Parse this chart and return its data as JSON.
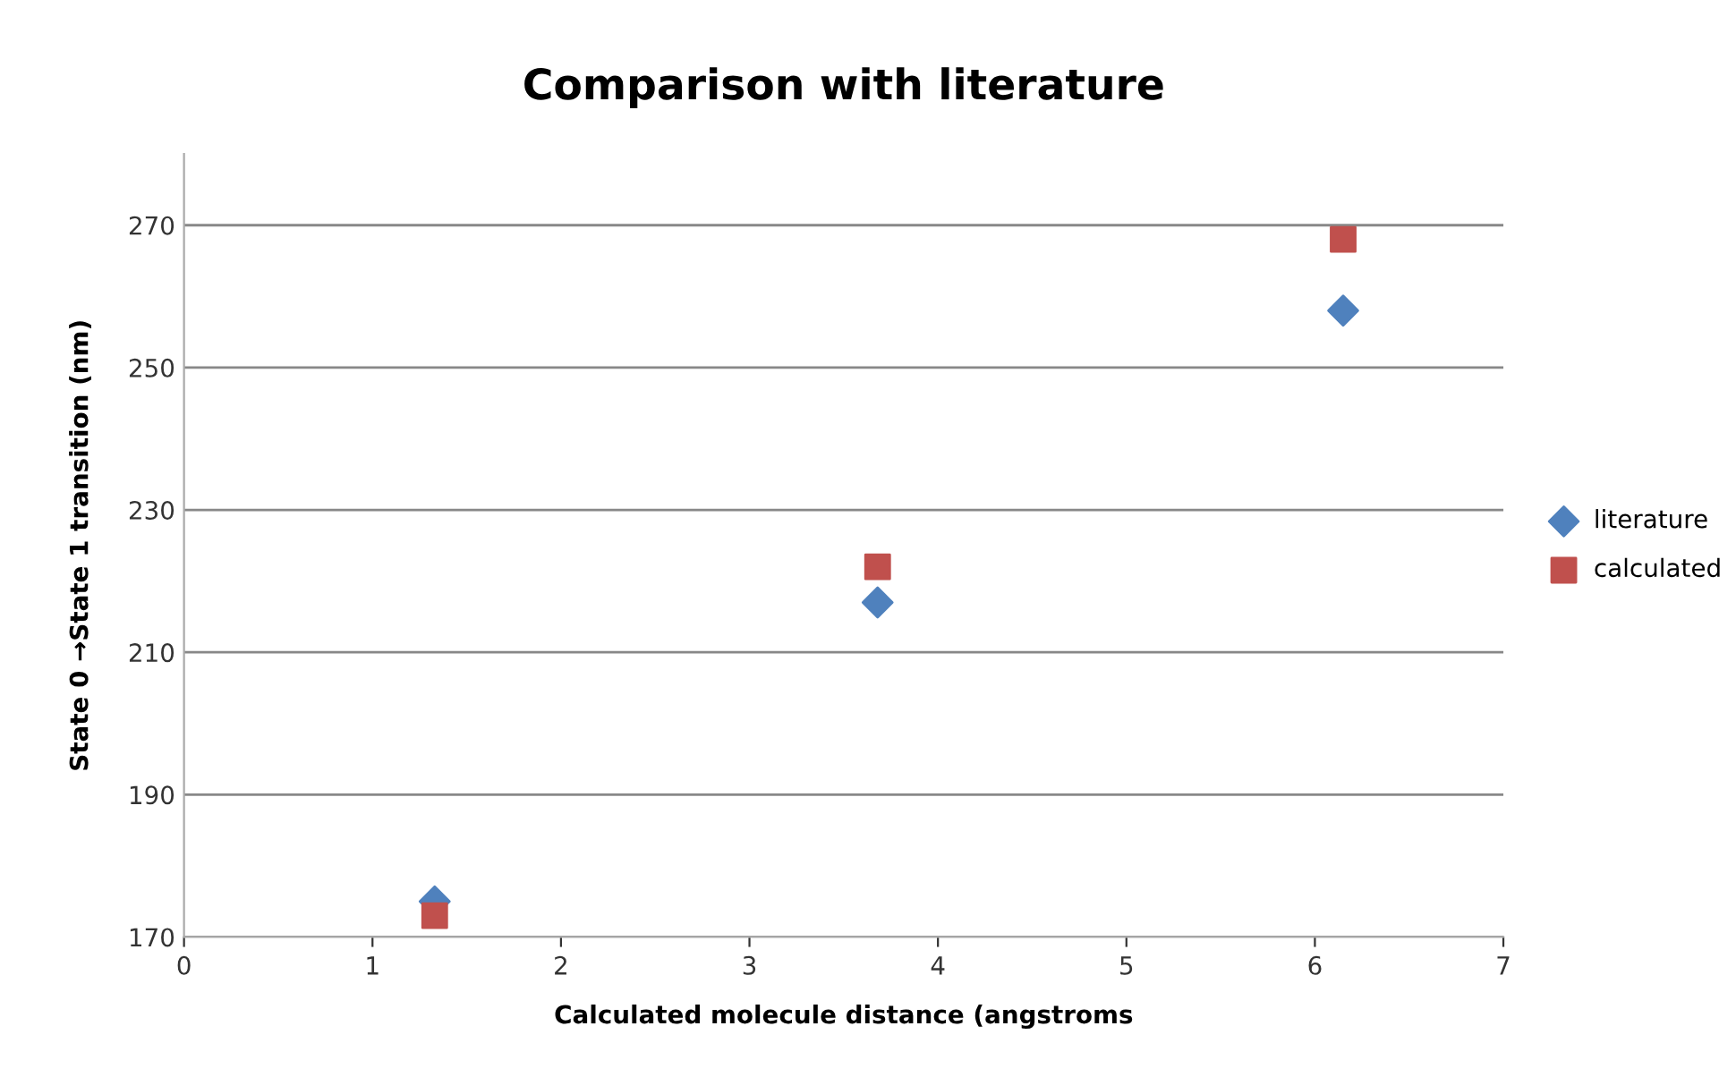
{
  "chart_data": {
    "type": "scatter",
    "title": "Comparison with literature",
    "xlabel": "Calculated molecule distance (angstroms",
    "ylabel": "State 0 →State 1 transition (nm)",
    "xlim": [
      0,
      7
    ],
    "xticks": [
      0,
      1,
      2,
      3,
      4,
      5,
      6,
      7
    ],
    "ylim": [
      170,
      280
    ],
    "yticks": [
      170,
      190,
      210,
      230,
      250,
      270
    ],
    "grid": "y",
    "legend": "right",
    "series": [
      {
        "name": "literature",
        "color": "#4f81bd",
        "marker": "diamond",
        "x": [
          1.33,
          3.68,
          6.15
        ],
        "values": [
          175,
          217,
          258
        ]
      },
      {
        "name": "calculated",
        "color": "#c0504d",
        "marker": "square",
        "x": [
          1.33,
          3.68,
          6.15
        ],
        "values": [
          173,
          222,
          268
        ]
      }
    ]
  }
}
